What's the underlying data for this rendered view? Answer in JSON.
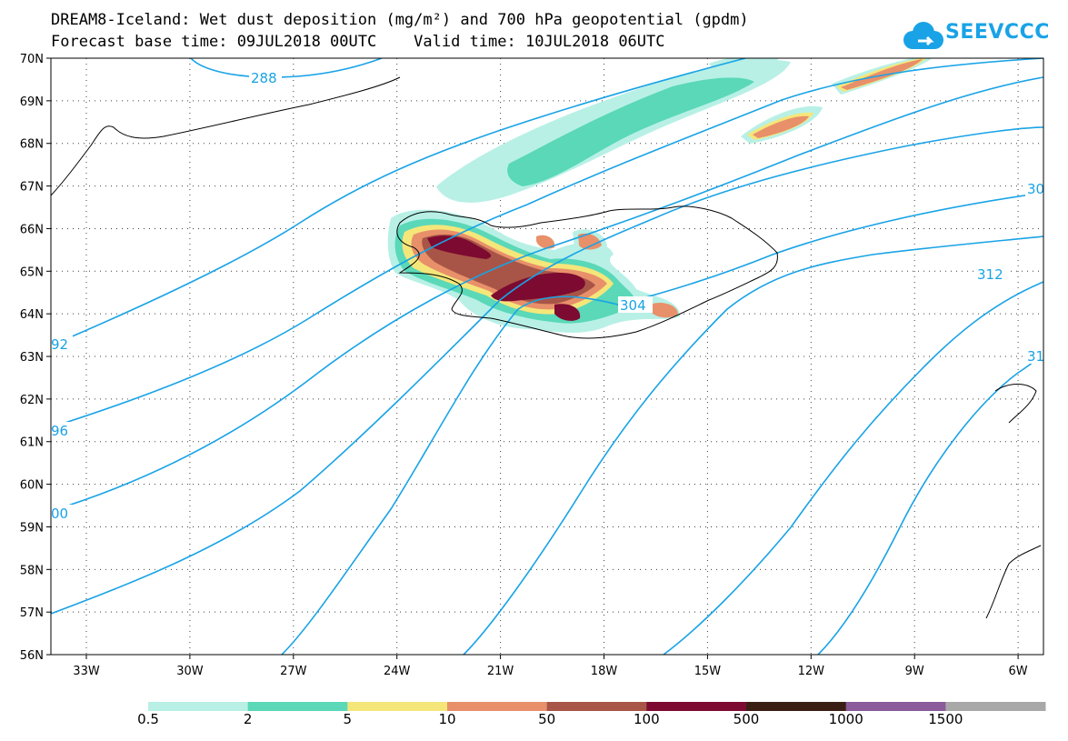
{
  "header": {
    "title_line1": "DREAM8-Iceland: Wet dust deposition (mg/m²) and 700 hPa geopotential (gpdm)",
    "title_line2": "Forecast base time: 09JUL2018 00UTC    Valid time: 10JUL2018 06UTC",
    "logo_text": "SEEVCCC"
  },
  "map": {
    "lat_labels": [
      "70N",
      "69N",
      "68N",
      "67N",
      "66N",
      "65N",
      "64N",
      "63N",
      "62N",
      "61N",
      "60N",
      "59N",
      "58N",
      "57N",
      "56N"
    ],
    "lon_labels": [
      "33W",
      "30W",
      "27W",
      "24W",
      "21W",
      "18W",
      "15W",
      "12W",
      "9W",
      "6W"
    ],
    "contour_labels": [
      "288",
      "304",
      "312",
      "30",
      "31",
      "92",
      "96",
      "00"
    ],
    "contour_color": "#19a3e6"
  },
  "colorbar": {
    "colors": [
      "#b8f0e6",
      "#5ad8b8",
      "#f5e67a",
      "#e8906a",
      "#a85548",
      "#7d0a30",
      "#3a1e14",
      "#8a5a9a",
      "#a8a8a8"
    ],
    "labels": [
      "0.5",
      "2",
      "5",
      "10",
      "50",
      "100",
      "500",
      "1000",
      "1500"
    ]
  }
}
